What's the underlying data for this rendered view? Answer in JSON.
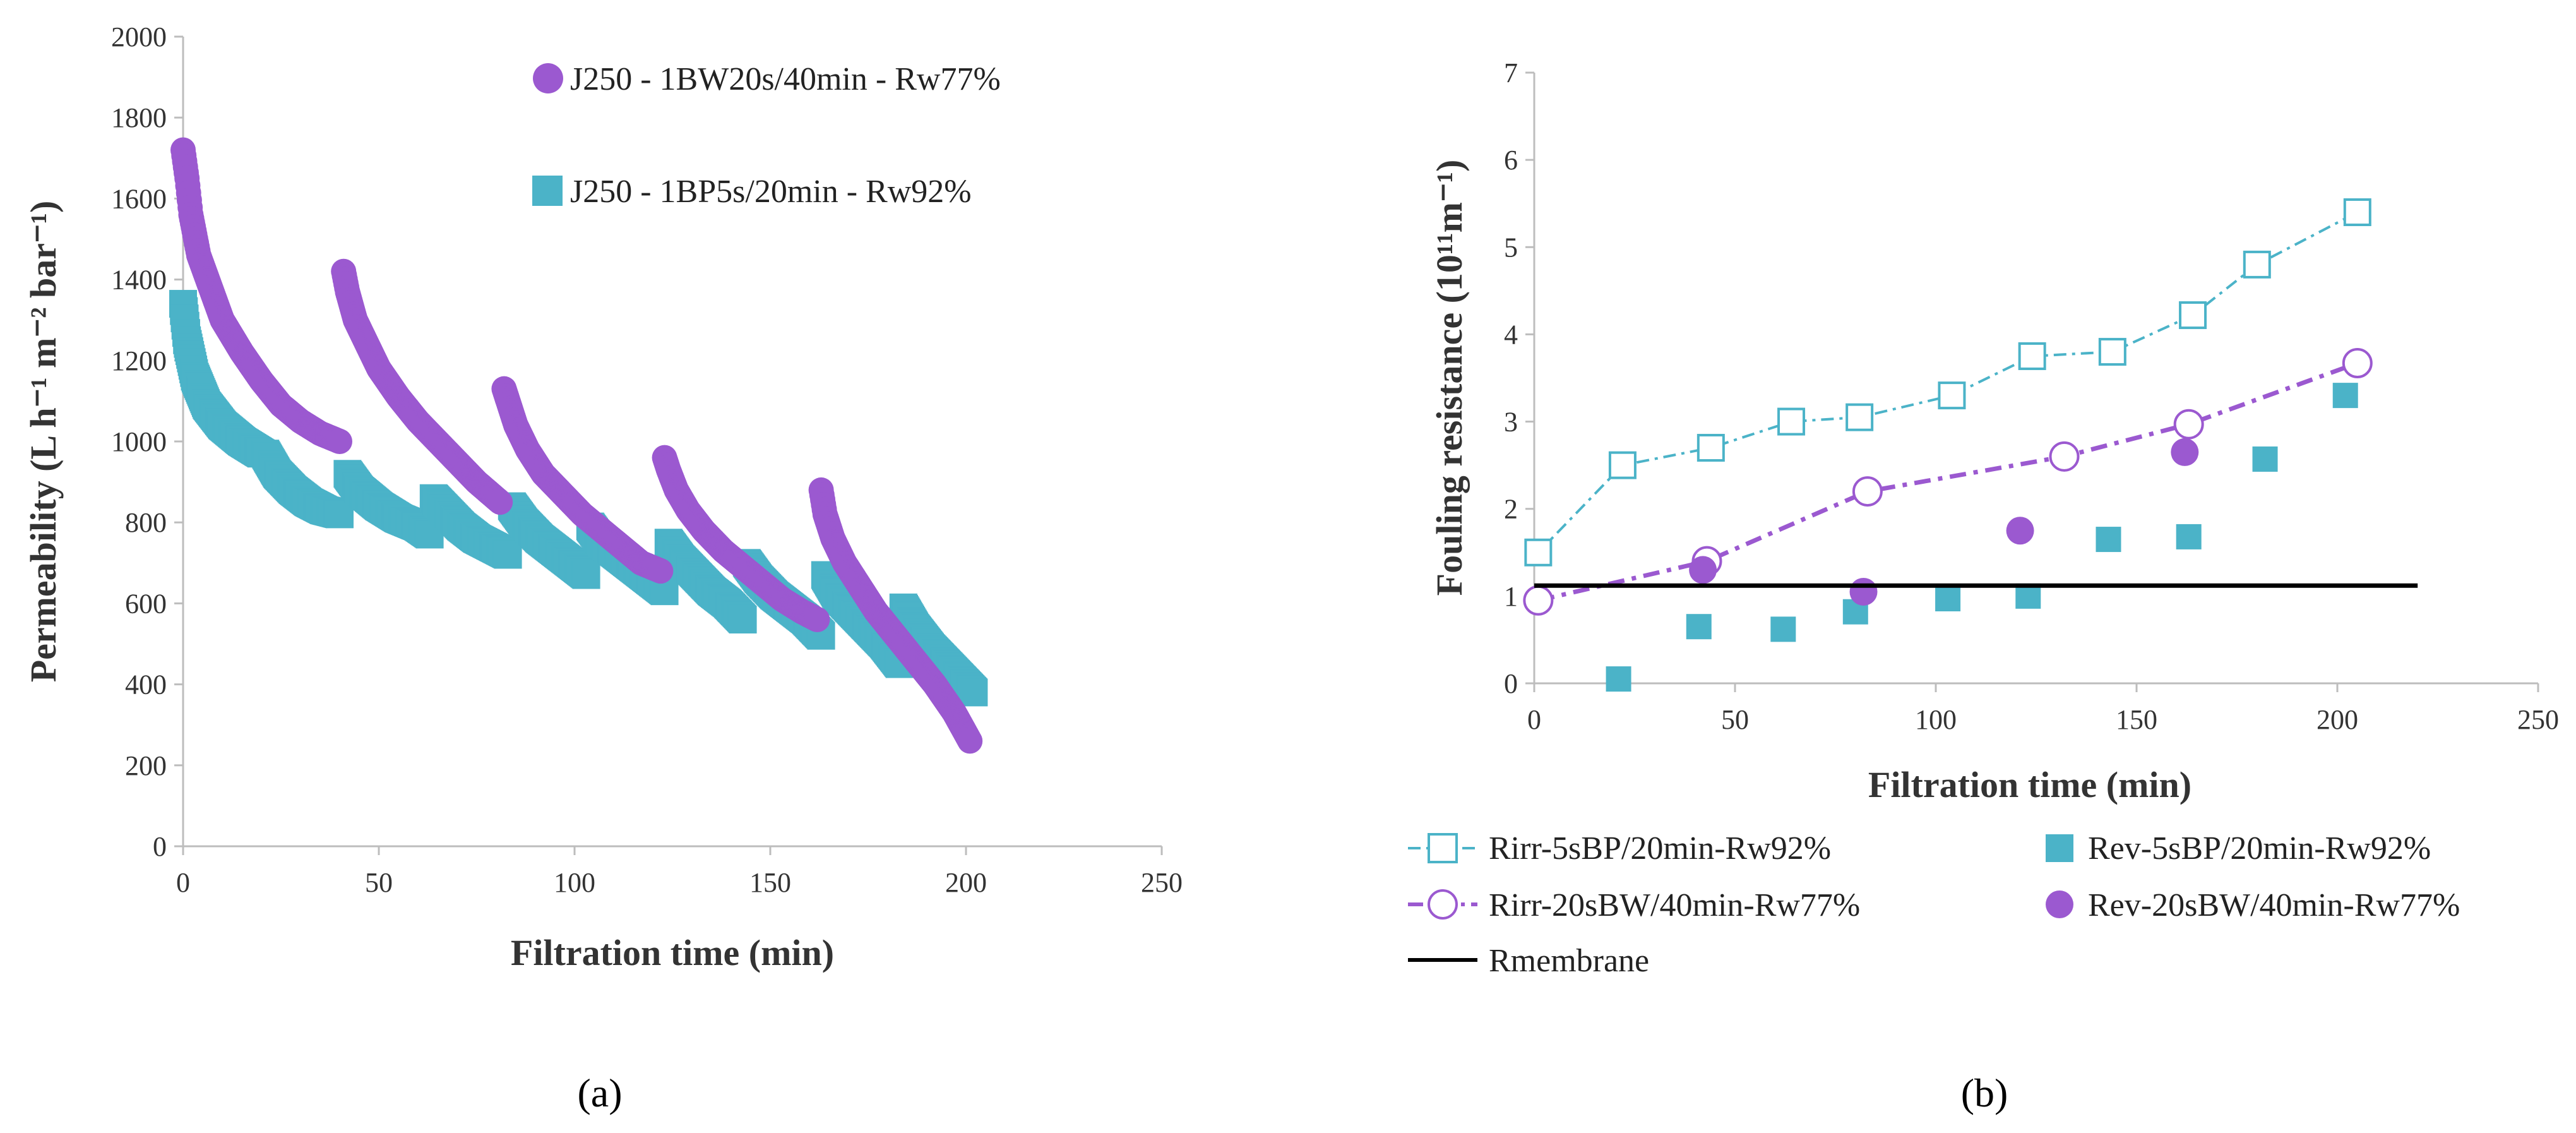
{
  "chart_data": [
    {
      "panel_label": "(a)",
      "type": "scatter",
      "xlabel": "Filtration time (min)",
      "ylabel": "Permeability (L h⁻¹ m⁻² bar⁻¹)",
      "xlim": [
        0,
        250
      ],
      "ylim": [
        0,
        2000
      ],
      "xticks": [
        "0",
        "50",
        "100",
        "150",
        "200",
        "250"
      ],
      "yticks": [
        "0",
        "200",
        "400",
        "600",
        "800",
        "1000",
        "1200",
        "1400",
        "1600",
        "1800",
        "2000"
      ],
      "legend_position": "top",
      "series": [
        {
          "name": "J250 - 1BW20s/40min - Rw77%",
          "color": "#9b59d0",
          "marker": "circle",
          "cycles": [
            {
              "x": [
                0,
                1,
                2,
                4,
                7,
                10,
                15,
                20,
                25,
                30,
                35,
                40
              ],
              "y": [
                1720,
                1650,
                1560,
                1460,
                1380,
                1300,
                1220,
                1150,
                1090,
                1050,
                1020,
                1000
              ]
            },
            {
              "x": [
                41,
                42,
                44,
                47,
                50,
                55,
                60,
                65,
                70,
                75,
                81
              ],
              "y": [
                1420,
                1370,
                1300,
                1240,
                1180,
                1110,
                1050,
                1000,
                950,
                900,
                850
              ]
            },
            {
              "x": [
                82,
                83,
                85,
                88,
                92,
                97,
                102,
                107,
                112,
                117,
                122
              ],
              "y": [
                1130,
                1100,
                1040,
                980,
                920,
                870,
                820,
                780,
                740,
                700,
                680
              ]
            },
            {
              "x": [
                123,
                124,
                126,
                129,
                133,
                138,
                143,
                148,
                153,
                158,
                162
              ],
              "y": [
                960,
                930,
                880,
                830,
                780,
                730,
                690,
                650,
                610,
                580,
                560
              ]
            },
            {
              "x": [
                163,
                164,
                166,
                169,
                173,
                177,
                182,
                187,
                192,
                197,
                201
              ],
              "y": [
                880,
                820,
                760,
                700,
                640,
                580,
                520,
                460,
                400,
                330,
                260
              ]
            }
          ]
        },
        {
          "name": "J250 - 1BP5s/20min - Rw92%",
          "color": "#4bb3c8",
          "marker": "square",
          "cycles": [
            {
              "x": [
                0,
                1,
                3,
                6,
                10,
                15,
                20
              ],
              "y": [
                1340,
                1250,
                1160,
                1090,
                1040,
                1000,
                970
              ]
            },
            {
              "x": [
                21,
                24,
                28,
                32,
                36,
                40
              ],
              "y": [
                970,
                920,
                880,
                850,
                830,
                820
              ]
            },
            {
              "x": [
                42,
                45,
                50,
                55,
                60,
                63
              ],
              "y": [
                920,
                880,
                840,
                810,
                790,
                770
              ]
            },
            {
              "x": [
                64,
                67,
                71,
                75,
                79,
                83
              ],
              "y": [
                860,
                830,
                790,
                760,
                740,
                720
              ]
            },
            {
              "x": [
                84,
                87,
                91,
                95,
                99,
                103
              ],
              "y": [
                840,
                800,
                760,
                730,
                700,
                670
              ]
            },
            {
              "x": [
                104,
                107,
                111,
                115,
                119,
                123
              ],
              "y": [
                790,
                750,
                720,
                690,
                660,
                630
              ]
            },
            {
              "x": [
                124,
                127,
                131,
                135,
                139,
                143
              ],
              "y": [
                750,
                710,
                670,
                630,
                600,
                560
              ]
            },
            {
              "x": [
                144,
                147,
                151,
                155,
                159,
                163
              ],
              "y": [
                700,
                660,
                620,
                590,
                560,
                520
              ]
            },
            {
              "x": [
                164,
                167,
                171,
                175,
                179,
                183
              ],
              "y": [
                670,
                620,
                580,
                540,
                500,
                450
              ]
            },
            {
              "x": [
                184,
                187,
                191,
                195,
                199,
                202
              ],
              "y": [
                590,
                540,
                490,
                450,
                410,
                380
              ]
            }
          ]
        }
      ]
    },
    {
      "panel_label": "(b)",
      "type": "line",
      "xlabel": "Filtration time (min)",
      "ylabel": "Fouling resistance (10¹¹m⁻¹)",
      "xlim": [
        0,
        250
      ],
      "ylim": [
        0,
        7
      ],
      "xticks": [
        "0",
        "50",
        "100",
        "150",
        "200",
        "250"
      ],
      "yticks": [
        "0",
        "1",
        "2",
        "3",
        "4",
        "5",
        "6",
        "7"
      ],
      "legend_position": "bottom",
      "series": [
        {
          "name": "Rirr-5sBP/20min-Rw92%",
          "color": "#4bb3c8",
          "marker": "open-square",
          "line": "dash-dot",
          "x": [
            1,
            22,
            44,
            64,
            81,
            104,
            124,
            144,
            164,
            180,
            205
          ],
          "y": [
            1.5,
            2.5,
            2.7,
            3.0,
            3.05,
            3.3,
            3.75,
            3.8,
            4.22,
            4.8,
            5.4
          ]
        },
        {
          "name": "Rev-5sBP/20min-Rw92%",
          "color": "#4bb3c8",
          "marker": "filled-square",
          "line": "none",
          "x": [
            21,
            41,
            62,
            80,
            103,
            123,
            143,
            163,
            182,
            202
          ],
          "y": [
            0.05,
            0.65,
            0.62,
            0.82,
            0.97,
            1.0,
            1.65,
            1.68,
            2.57,
            3.3
          ]
        },
        {
          "name": "Rirr-20sBW/40min-Rw77%",
          "color": "#9b59d0",
          "marker": "open-circle",
          "line": "dash-dot",
          "x": [
            1,
            43,
            83,
            132,
            163,
            205
          ],
          "y": [
            0.95,
            1.4,
            2.2,
            2.6,
            2.97,
            3.67
          ]
        },
        {
          "name": "Rev-20sBW/40min-Rw77%",
          "color": "#9b59d0",
          "marker": "filled-circle",
          "line": "none",
          "x": [
            42,
            82,
            121,
            162
          ],
          "y": [
            1.3,
            1.05,
            1.75,
            2.65
          ]
        },
        {
          "name": "Rmembrane",
          "color": "#000000",
          "marker": "none",
          "line": "solid",
          "x": [
            0,
            220
          ],
          "y": [
            1.12,
            1.12
          ]
        }
      ]
    }
  ]
}
